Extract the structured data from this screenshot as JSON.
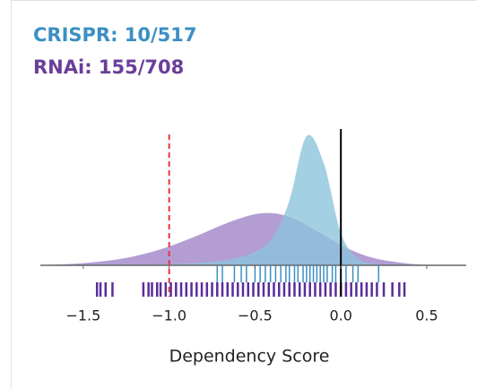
{
  "chart_data": {
    "type": "density",
    "xlabel": "Dependency Score",
    "xlim": [
      -1.75,
      0.73
    ],
    "ylim": [
      0,
      2.5
    ],
    "xticks": [
      {
        "value": -1.5,
        "label": "−1.5"
      },
      {
        "value": -1.0,
        "label": "−1.0"
      },
      {
        "value": -0.5,
        "label": "−0.5"
      },
      {
        "value": 0.0,
        "label": "0.0"
      },
      {
        "value": 0.5,
        "label": "0.5"
      }
    ],
    "x": [
      -1.7,
      -1.6,
      -1.5,
      -1.4,
      -1.3,
      -1.2,
      -1.1,
      -1.0,
      -0.9,
      -0.8,
      -0.7,
      -0.6,
      -0.5,
      -0.4,
      -0.3,
      -0.2,
      -0.1,
      0.0,
      0.1,
      0.2,
      0.3,
      0.4,
      0.5,
      0.6,
      0.7
    ],
    "series": [
      {
        "name": "CRISPR: 10/517",
        "color": "#8cc4dc",
        "label_color": "#3b8fc4",
        "values": [
          0,
          0,
          0,
          0,
          0,
          0,
          0.01,
          0.02,
          0.03,
          0.05,
          0.08,
          0.14,
          0.25,
          0.5,
          1.2,
          2.4,
          1.9,
          0.6,
          0.12,
          0.03,
          0.01,
          0,
          0,
          0,
          0
        ],
        "rug": [
          -0.72,
          -0.69,
          -0.62,
          -0.58,
          -0.55,
          -0.5,
          -0.47,
          -0.44,
          -0.41,
          -0.38,
          -0.35,
          -0.32,
          -0.3,
          -0.27,
          -0.25,
          -0.22,
          -0.2,
          -0.18,
          -0.16,
          -0.14,
          -0.12,
          -0.1,
          -0.08,
          -0.05,
          -0.03,
          0.0,
          0.03,
          0.07,
          0.1,
          0.22
        ]
      },
      {
        "name": "RNAi: 155/708",
        "color": "#9b7cc4",
        "label_color": "#6a3d9a",
        "values": [
          0.01,
          0.02,
          0.04,
          0.07,
          0.11,
          0.17,
          0.25,
          0.35,
          0.47,
          0.6,
          0.74,
          0.86,
          0.95,
          0.97,
          0.9,
          0.75,
          0.56,
          0.38,
          0.23,
          0.13,
          0.07,
          0.03,
          0.01,
          0,
          0
        ],
        "rug": [
          -1.42,
          -1.4,
          -1.37,
          -1.33,
          -1.15,
          -1.12,
          -1.1,
          -1.07,
          -1.05,
          -1.02,
          -0.99,
          -0.96,
          -0.93,
          -0.9,
          -0.87,
          -0.84,
          -0.81,
          -0.78,
          -0.75,
          -0.72,
          -0.69,
          -0.66,
          -0.63,
          -0.6,
          -0.57,
          -0.54,
          -0.51,
          -0.48,
          -0.45,
          -0.42,
          -0.39,
          -0.36,
          -0.33,
          -0.3,
          -0.27,
          -0.24,
          -0.21,
          -0.18,
          -0.15,
          -0.12,
          -0.09,
          -0.06,
          -0.03,
          0.0,
          0.03,
          0.06,
          0.09,
          0.12,
          0.15,
          0.18,
          0.21,
          0.25,
          0.3,
          0.34,
          0.37
        ]
      }
    ],
    "reference_lines": [
      {
        "value": -1.0,
        "color": "#e8373a",
        "dashed": true
      },
      {
        "value": 0.0,
        "color": "#000000",
        "dashed": false
      }
    ]
  }
}
